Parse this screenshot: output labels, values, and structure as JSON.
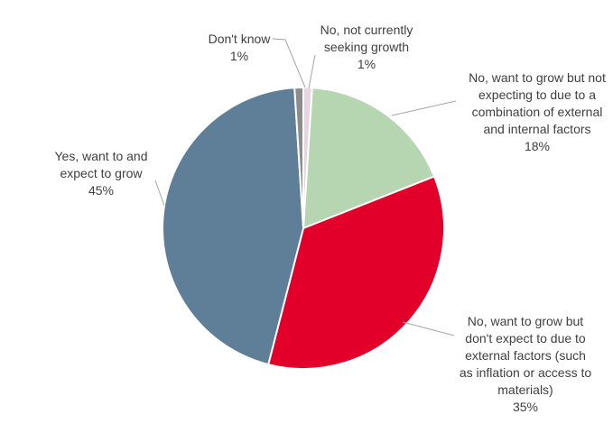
{
  "chart_data": {
    "type": "pie",
    "title": "",
    "start_angle_deg": 0,
    "direction": "clockwise",
    "slices": [
      {
        "label_lines": [
          "No, not currently",
          "seeking growth"
        ],
        "value": 1,
        "value_label": "1%",
        "color": "#e8d3e1"
      },
      {
        "label_lines": [
          "No, want to grow but not",
          "expecting to due to a",
          "combination of external",
          "and internal factors"
        ],
        "value": 18,
        "value_label": "18%",
        "color": "#b5d6b0"
      },
      {
        "label_lines": [
          "No, want to grow but",
          "don't expect to due to",
          "external factors (such",
          "as inflation or access to",
          "materials)"
        ],
        "value": 35,
        "value_label": "35%",
        "color": "#e2002a"
      },
      {
        "label_lines": [
          "Yes, want to and",
          "expect to grow"
        ],
        "value": 45,
        "value_label": "45%",
        "color": "#5f7e97"
      },
      {
        "label_lines": [
          "Don't know"
        ],
        "value": 1,
        "value_label": "1%",
        "color": "#8c8c8c"
      }
    ]
  }
}
